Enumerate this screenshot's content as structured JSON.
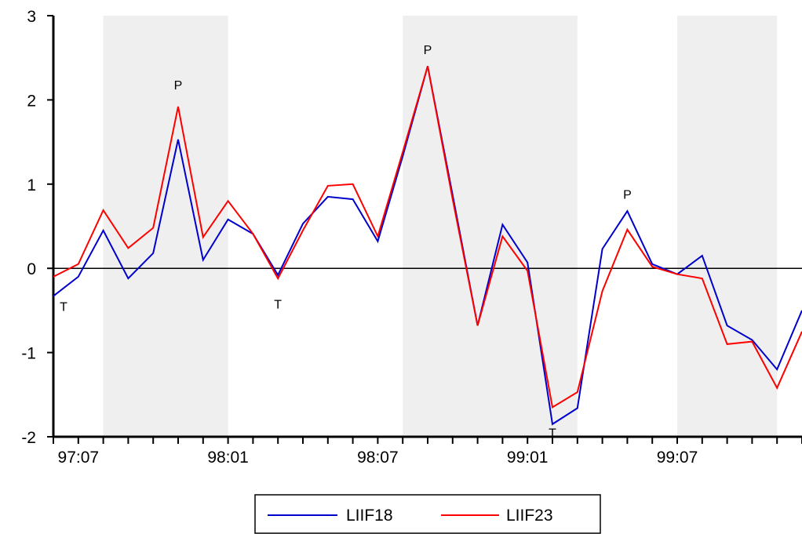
{
  "chart_data": {
    "type": "line",
    "x": [
      "97:06",
      "97:07",
      "97:08",
      "97:09",
      "97:10",
      "97:11",
      "97:12",
      "98:01",
      "98:02",
      "98:03",
      "98:04",
      "98:05",
      "98:06",
      "98:07",
      "98:08",
      "98:09",
      "98:10",
      "98:11",
      "98:12",
      "99:01",
      "99:02",
      "99:03",
      "99:04",
      "99:05",
      "99:06",
      "99:07",
      "99:08",
      "99:09",
      "99:10",
      "99:11",
      "99:12"
    ],
    "x_tick_labels": [
      "97:07",
      "98:01",
      "98:07",
      "99:01",
      "99:07"
    ],
    "series": [
      {
        "name": "LIIF18",
        "color": "#0000cc",
        "values": [
          -0.33,
          -0.1,
          0.45,
          -0.12,
          0.18,
          1.53,
          0.1,
          0.58,
          0.41,
          -0.08,
          0.53,
          0.85,
          0.82,
          0.32,
          1.33,
          2.4,
          0.87,
          -0.68,
          0.52,
          0.07,
          -1.85,
          -1.66,
          0.23,
          0.68,
          0.05,
          -0.07,
          0.15,
          -0.68,
          -0.85,
          -1.2,
          -0.5
        ]
      },
      {
        "name": "LIIF23",
        "color": "#ff0000",
        "values": [
          -0.1,
          0.05,
          0.69,
          0.24,
          0.48,
          1.92,
          0.37,
          0.8,
          0.41,
          -0.12,
          0.45,
          0.98,
          1.0,
          0.38,
          1.38,
          2.4,
          0.82,
          -0.68,
          0.38,
          -0.03,
          -1.65,
          -1.47,
          -0.27,
          0.46,
          0.02,
          -0.07,
          -0.12,
          -0.9,
          -0.87,
          -1.42,
          -0.75
        ]
      }
    ],
    "shaded_periods": [
      [
        2,
        7
      ],
      [
        14,
        21
      ],
      [
        25,
        29
      ]
    ],
    "annotations": [
      {
        "label": "T",
        "x_index": 0,
        "y": -0.45
      },
      {
        "label": "P",
        "x_index": 5,
        "y": 2.18
      },
      {
        "label": "T",
        "x_index": 9,
        "y": -0.42
      },
      {
        "label": "P",
        "x_index": 15,
        "y": 2.6
      },
      {
        "label": "T",
        "x_index": 20,
        "y": -1.95
      },
      {
        "label": "P",
        "x_index": 23,
        "y": 0.88
      }
    ],
    "ylim": [
      -2,
      3
    ],
    "yticks": [
      -2,
      -1,
      0,
      1,
      2,
      3
    ],
    "zero_line": true,
    "grid": false,
    "legend_position": "bottom-center",
    "title": "",
    "xlabel": "",
    "ylabel": ""
  }
}
